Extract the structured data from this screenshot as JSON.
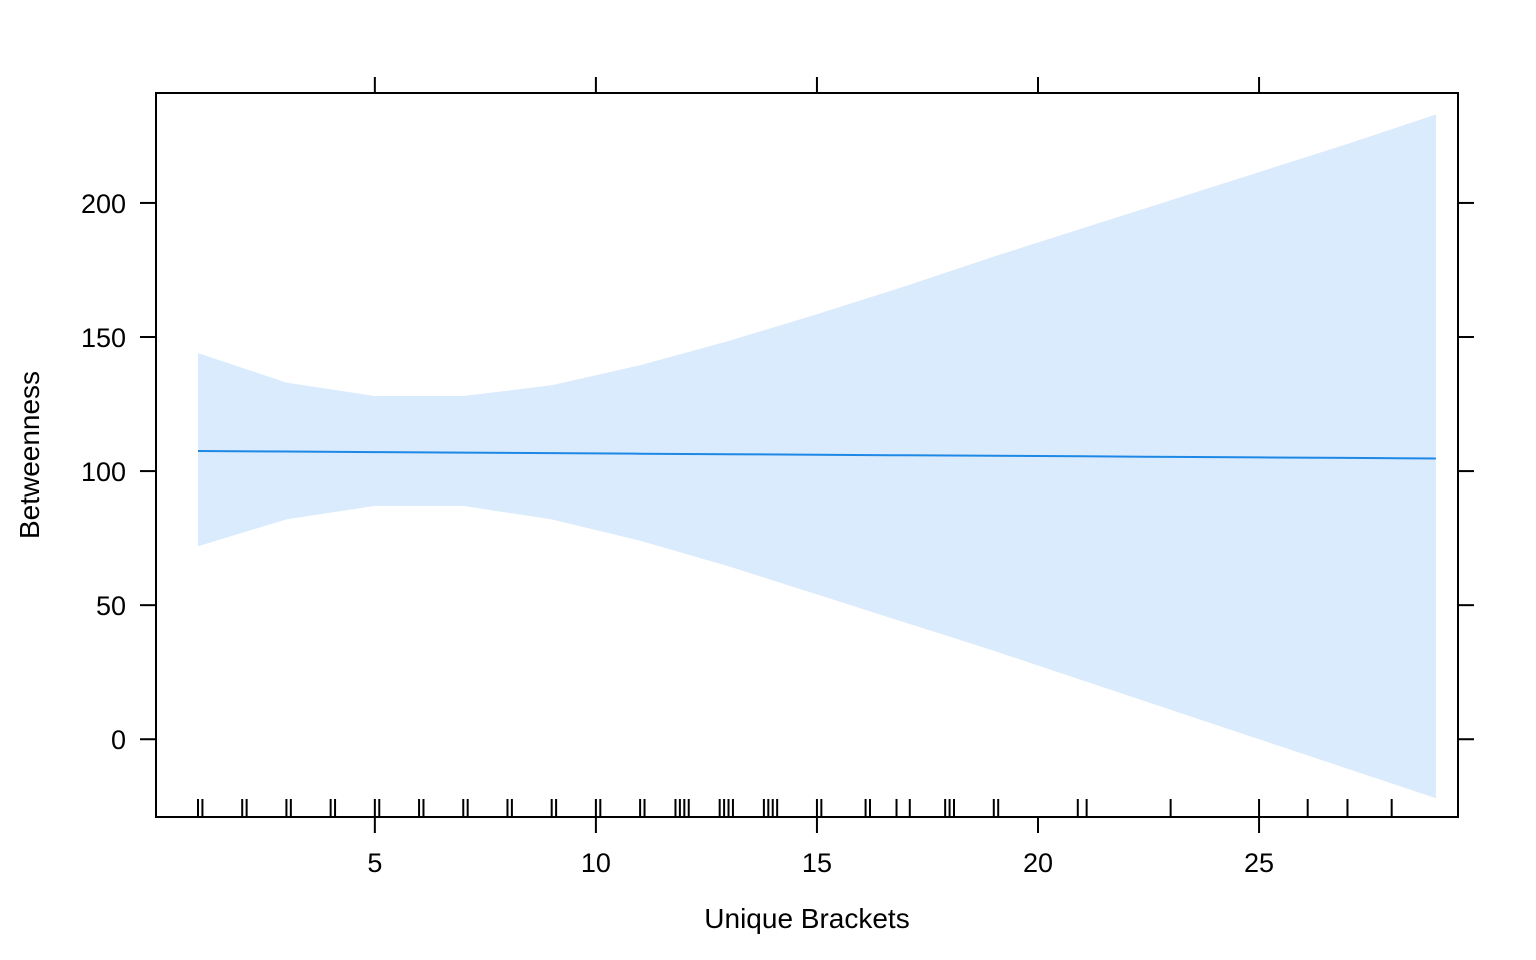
{
  "chart_data": {
    "type": "line",
    "title": "",
    "xlabel": "Unique Brackets",
    "ylabel": "Betweenness",
    "xlim": [
      0.05,
      29.5
    ],
    "ylim": [
      -29,
      241
    ],
    "x_ticks": [
      5,
      10,
      15,
      20,
      25
    ],
    "y_ticks": [
      0,
      50,
      100,
      150,
      200
    ],
    "grid": false,
    "legend": "none",
    "colors": {
      "fit_line": "#1E88E5",
      "confidence_band": "#DAEBFD",
      "rug": "#000000",
      "axis": "#000000"
    },
    "series": [
      {
        "x": [
          1,
          3,
          5,
          7,
          9,
          11,
          13,
          15,
          17,
          19,
          21,
          23,
          25,
          27,
          29
        ],
        "fit": [
          107.5,
          107.3,
          107.1,
          106.9,
          106.7,
          106.5,
          106.3,
          106.1,
          105.9,
          105.7,
          105.5,
          105.3,
          105.1,
          104.9,
          104.7
        ],
        "lower": [
          72,
          82,
          87,
          87,
          82,
          74,
          64.5,
          54,
          43.5,
          33,
          22,
          11,
          0,
          -11,
          -22
        ],
        "upper": [
          144,
          133,
          128,
          128,
          132,
          139.5,
          148.5,
          158.5,
          169,
          180,
          190.5,
          201,
          211.5,
          222,
          233
        ]
      }
    ],
    "rug": [
      1,
      1.1,
      2,
      2.1,
      3,
      3.1,
      4,
      4.1,
      5,
      5.1,
      6,
      6.1,
      7,
      7.1,
      8,
      8.1,
      9,
      9.1,
      10,
      10.1,
      11,
      11.1,
      11.8,
      11.9,
      12,
      12.1,
      12.8,
      12.9,
      13,
      13.1,
      13.8,
      13.9,
      14,
      14.1,
      15,
      15.1,
      16.1,
      16.2,
      16.8,
      17.1,
      17.9,
      18,
      18.1,
      19,
      19.1,
      20.9,
      21.1,
      23,
      25,
      26.1,
      27,
      28
    ]
  }
}
